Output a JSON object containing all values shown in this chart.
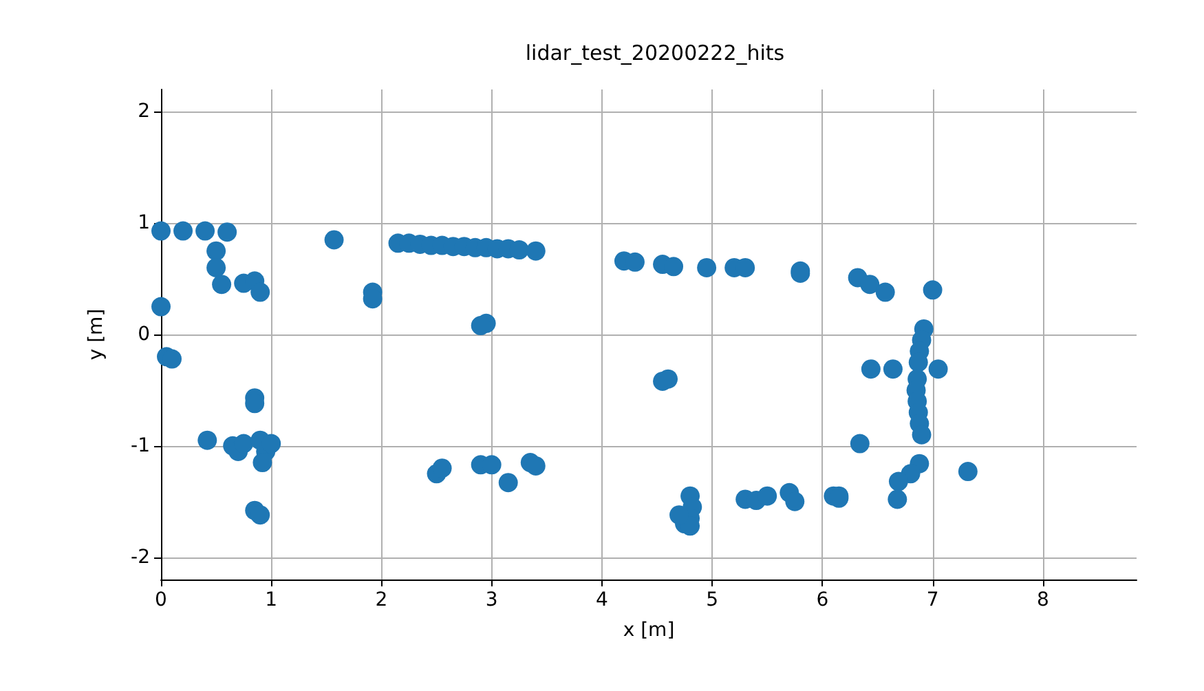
{
  "chart_data": {
    "type": "scatter",
    "title": "lidar_test_20200222_hits",
    "xlabel": "x [m]",
    "ylabel": "y [m]",
    "xlim": [
      0,
      8.85
    ],
    "ylim": [
      -2.2,
      2.2
    ],
    "xticks": [
      0,
      1,
      2,
      3,
      4,
      5,
      6,
      7,
      8
    ],
    "yticks": [
      -2,
      -1,
      0,
      1,
      2
    ],
    "grid": true,
    "marker": "circle",
    "series": [
      {
        "color": "#1f77b4",
        "x": [
          0.0,
          0.2,
          0.4,
          0.6,
          0.5,
          0.5,
          0.55,
          0.75,
          0.85,
          0.9,
          0.0,
          0.05,
          0.1,
          0.85,
          0.85,
          0.42,
          0.65,
          0.7,
          0.75,
          0.9,
          0.95,
          0.92,
          1.0,
          0.85,
          0.9,
          1.57,
          1.92,
          1.92,
          2.15,
          2.25,
          2.35,
          2.45,
          2.55,
          2.65,
          2.75,
          2.85,
          2.95,
          3.05,
          3.15,
          3.25,
          3.4,
          2.95,
          2.9,
          2.5,
          2.55,
          2.9,
          3.0,
          3.15,
          3.35,
          3.4,
          4.2,
          4.3,
          4.55,
          4.65,
          4.95,
          5.2,
          5.3,
          5.8,
          5.8,
          4.6,
          4.55,
          4.8,
          4.82,
          4.8,
          4.75,
          4.8,
          4.7,
          5.3,
          5.4,
          5.5,
          5.7,
          5.75,
          6.1,
          6.15,
          6.32,
          6.43,
          6.57,
          7.0,
          6.92,
          6.9,
          6.88,
          6.87,
          6.86,
          6.85,
          6.86,
          6.87,
          6.88,
          6.9,
          6.44,
          6.64,
          7.05,
          6.34,
          6.88,
          6.8,
          6.69,
          6.68,
          6.15,
          7.32
        ],
        "values": [
          0.93,
          0.93,
          0.93,
          0.92,
          0.75,
          0.6,
          0.45,
          0.46,
          0.48,
          0.38,
          0.25,
          -0.2,
          -0.22,
          -0.57,
          -0.62,
          -0.95,
          -1.0,
          -1.05,
          -0.98,
          -0.95,
          -1.05,
          -1.15,
          -0.98,
          -1.58,
          -1.62,
          0.85,
          0.38,
          0.32,
          0.82,
          0.82,
          0.81,
          0.8,
          0.8,
          0.79,
          0.79,
          0.78,
          0.78,
          0.77,
          0.77,
          0.76,
          0.75,
          0.1,
          0.08,
          -1.25,
          -1.2,
          -1.17,
          -1.17,
          -1.33,
          -1.15,
          -1.18,
          0.66,
          0.65,
          0.63,
          0.61,
          0.6,
          0.6,
          0.6,
          0.57,
          0.55,
          -0.4,
          -0.42,
          -1.45,
          -1.55,
          -1.65,
          -1.7,
          -1.72,
          -1.62,
          -1.48,
          -1.49,
          -1.45,
          -1.42,
          -1.5,
          -1.45,
          -1.45,
          0.51,
          0.45,
          0.38,
          0.4,
          0.05,
          -0.05,
          -0.15,
          -0.25,
          -0.4,
          -0.5,
          -0.6,
          -0.7,
          -0.8,
          -0.9,
          -0.31,
          -0.31,
          -0.31,
          -0.98,
          -1.16,
          -1.25,
          -1.32,
          -1.48,
          -1.47,
          -1.23
        ]
      }
    ]
  }
}
